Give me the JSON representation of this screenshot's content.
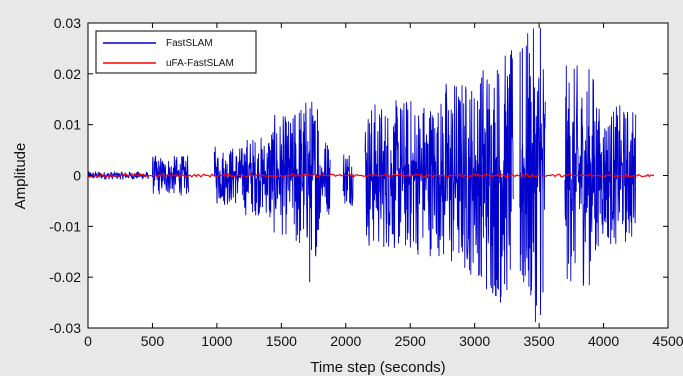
{
  "chart_data": {
    "type": "line",
    "xlabel": "Time step (seconds)",
    "ylabel": "Amplitude",
    "xlim": [
      0,
      4500
    ],
    "ylim": [
      -0.03,
      0.03
    ],
    "x_ticks": [
      0,
      500,
      1000,
      1500,
      2000,
      2500,
      3000,
      3500,
      4000,
      4500
    ],
    "y_ticks": [
      -0.03,
      -0.02,
      -0.01,
      0,
      0.01,
      0.02,
      0.03
    ],
    "x_tick_labels": [
      "0",
      "500",
      "1000",
      "1500",
      "2000",
      "2500",
      "3000",
      "3500",
      "4000",
      "4500"
    ],
    "y_tick_labels": [
      "-0.03",
      "-0.02",
      "-0.01",
      "0",
      "0.01",
      "0.02",
      "0.03"
    ],
    "grid": false,
    "legend_position": "top-left",
    "series": [
      {
        "name": "FastSLAM",
        "color": "#0000cc",
        "segments": [
          {
            "x_start": 0,
            "x_end": 470,
            "max_amp": 0.0008
          },
          {
            "x_start": 500,
            "x_end": 780,
            "max_amp": 0.004
          },
          {
            "x_start": 980,
            "x_end": 1200,
            "max_amp": 0.006
          },
          {
            "x_start": 1200,
            "x_end": 1400,
            "max_amp": 0.008
          },
          {
            "x_start": 1400,
            "x_end": 1600,
            "max_amp": 0.012
          },
          {
            "x_start": 1600,
            "x_end": 1800,
            "max_amp": 0.016
          },
          {
            "x_start": 1800,
            "x_end": 1880,
            "max_amp": 0.008
          },
          {
            "x_start": 1980,
            "x_end": 2060,
            "max_amp": 0.006
          },
          {
            "x_start": 2150,
            "x_end": 2400,
            "max_amp": 0.015
          },
          {
            "x_start": 2400,
            "x_end": 2750,
            "max_amp": 0.016
          },
          {
            "x_start": 2750,
            "x_end": 3050,
            "max_amp": 0.02
          },
          {
            "x_start": 3050,
            "x_end": 3300,
            "max_amp": 0.025
          },
          {
            "x_start": 3350,
            "x_end": 3550,
            "max_amp": 0.029
          },
          {
            "x_start": 3700,
            "x_end": 3950,
            "max_amp": 0.022
          },
          {
            "x_start": 3950,
            "x_end": 4250,
            "max_amp": 0.014
          }
        ],
        "peaks": [
          {
            "x": 1780,
            "y": 0.013
          },
          {
            "x": 1720,
            "y": -0.021
          },
          {
            "x": 3200,
            "y": -0.025
          },
          {
            "x": 3510,
            "y": 0.029
          },
          {
            "x": 3530,
            "y": -0.023
          },
          {
            "x": 3370,
            "y": 0.025
          },
          {
            "x": 3390,
            "y": -0.017
          }
        ]
      },
      {
        "name": "uFA-FastSLAM",
        "color": "#ff0000",
        "segments": [
          {
            "x_start": 0,
            "x_end": 4400,
            "max_amp": 0.0003
          }
        ]
      }
    ]
  }
}
